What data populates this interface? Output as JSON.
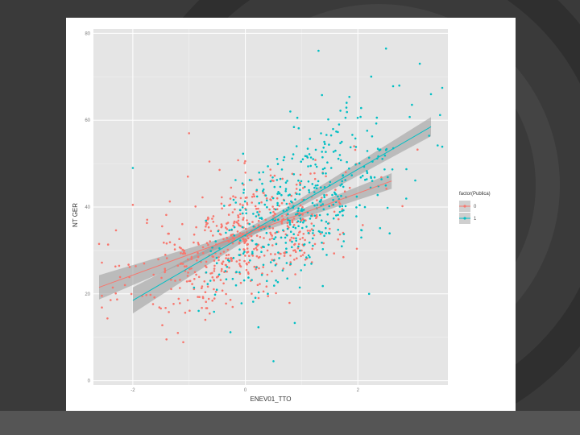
{
  "colors": {
    "background": "#3a3a3a",
    "panel": "#e5e5e5",
    "gridline": "#ffffff",
    "band": "#999999",
    "series_0": "#f8766d",
    "series_1": "#00bfc4"
  },
  "chart_data": {
    "type": "scatter",
    "title": "",
    "xlabel": "ENEV01_TTO",
    "ylabel": "NT GER",
    "x_ticks": [
      -2,
      0,
      2
    ],
    "x_tick_labels": [
      "-2",
      "0",
      "2"
    ],
    "y_ticks": [
      0,
      20,
      40,
      60,
      80
    ],
    "y_tick_labels": [
      "0",
      "20",
      "40",
      "60",
      "80"
    ],
    "xlim": [
      -2.7,
      3.6
    ],
    "ylim": [
      -1,
      81
    ],
    "grid": true,
    "legend": {
      "title": "factor(Publica)",
      "position": "right",
      "entries": [
        "0",
        "1"
      ]
    },
    "series": [
      {
        "name": "0",
        "color": "#f8766d",
        "fit": {
          "x": [
            -2.6,
            2.6
          ],
          "y": [
            21.5,
            46.0
          ],
          "se_halfwidth": [
            2.8,
            1.8
          ]
        },
        "points_sample": [
          [
            -2.6,
            31.5
          ],
          [
            -2.0,
            40.5
          ],
          [
            -1.8,
            27.0
          ],
          [
            -1.0,
            57.0
          ],
          [
            -1.2,
            26.5
          ],
          [
            0.0,
            32.0
          ],
          [
            0.5,
            38.0
          ],
          [
            1.0,
            30.0
          ],
          [
            -1.2,
            11.0
          ],
          [
            1.5,
            35.0
          ]
        ]
      },
      {
        "name": "1",
        "color": "#00bfc4",
        "fit": {
          "x": [
            -2.0,
            3.3
          ],
          "y": [
            18.5,
            58.5
          ],
          "se_halfwidth": [
            3.0,
            2.2
          ]
        },
        "points_sample": [
          [
            -2.0,
            49.0
          ],
          [
            1.3,
            76.0
          ],
          [
            2.5,
            76.5
          ],
          [
            3.1,
            73.0
          ],
          [
            3.3,
            66.0
          ],
          [
            1.8,
            64.0
          ],
          [
            0.8,
            62.0
          ],
          [
            1.5,
            45.0
          ],
          [
            0.5,
            4.5
          ],
          [
            2.2,
            20.0
          ]
        ]
      }
    ]
  }
}
